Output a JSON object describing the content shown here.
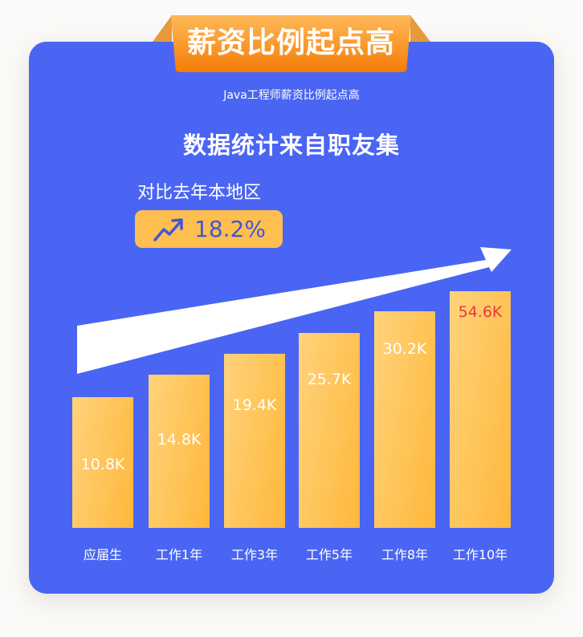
{
  "badge": {
    "title": "薪资比例起点高"
  },
  "subtitle": "Java工程师薪资比例起点高",
  "heading": "数据统计来自职友集",
  "comparison": {
    "label": "对比去年本地区",
    "value": "18.2%",
    "icon": "trending-up-icon"
  },
  "colors": {
    "background": "#4a65f3",
    "bar": "#ffc04f",
    "badge": "#f58a1a",
    "highlight_label": "#e8383a"
  },
  "chart_data": {
    "type": "bar",
    "categories": [
      "应届生",
      "工作1年",
      "工作3年",
      "工作5年",
      "工作8年",
      "工作10年"
    ],
    "values": [
      10.8,
      14.8,
      19.4,
      25.7,
      30.2,
      54.6
    ],
    "labels": [
      "10.8K",
      "14.8K",
      "19.4K",
      "25.7K",
      "30.2K",
      "54.6K"
    ],
    "unit": "K",
    "grid": false,
    "title": "",
    "xlabel": "",
    "ylabel": ""
  }
}
